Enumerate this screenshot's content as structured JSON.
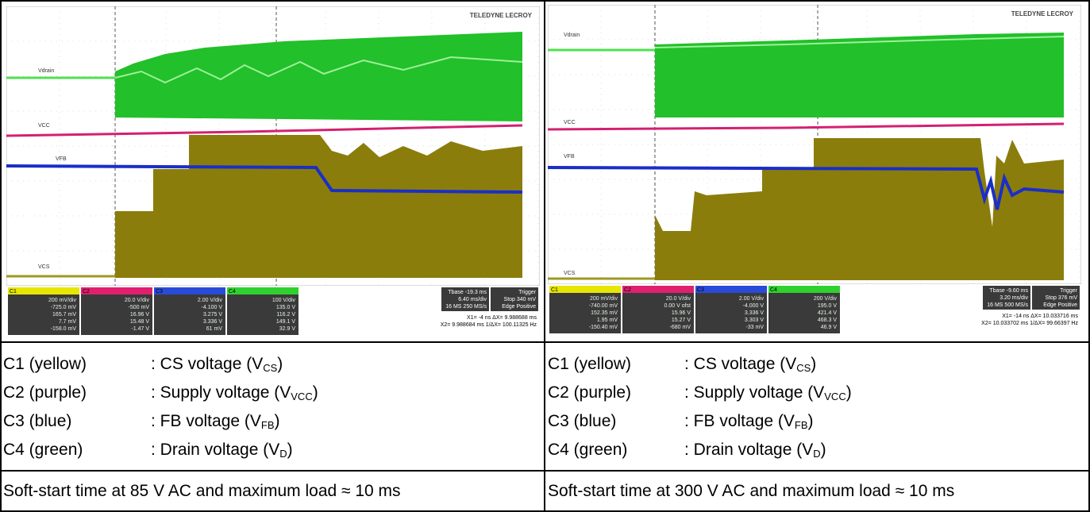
{
  "panels": [
    {
      "logo": "TELEDYNE LECROY",
      "traces": [
        "Vdrain",
        "VCC",
        "VFB",
        "VCS"
      ],
      "channels": [
        {
          "name": "C1",
          "lines": [
            "200 mV/div",
            "-725.0 mV",
            "165.7 mV",
            "7.7 mV",
            "-158.0 mV"
          ]
        },
        {
          "name": "C2",
          "lines": [
            "20.0 V/div",
            "-500 mV",
            "16.96 V",
            "15.48 V",
            "-1.47 V"
          ]
        },
        {
          "name": "C3",
          "lines": [
            "2.00 V/div",
            "-4.100 V",
            "3.275 V",
            "3.336 V",
            "61 mV"
          ]
        },
        {
          "name": "C4",
          "lines": [
            "100 V/div",
            "135.0 V",
            "116.2 V",
            "149.1 V",
            "32.9 V"
          ]
        }
      ],
      "timebase": [
        "Tbase -19.3 ms",
        "6.40 ms/div",
        "16 MS 250 MS/s"
      ],
      "trigger": [
        "Trigger",
        "Stop 340 mV",
        "Edge Positive"
      ],
      "cursors": [
        "X1= -4 ns ΔX= 9.988688 ms",
        "X2= 9.988684 ms 1/ΔX= 100.11325 Hz"
      ],
      "legend": [
        {
          "label": "C1 (yellow)",
          "desc": ": CS voltage (V",
          "sub": "CS",
          "end": ")"
        },
        {
          "label": "C2 (purple)",
          "desc": ": Supply voltage (V",
          "sub": "VCC",
          "end": ")"
        },
        {
          "label": "C3 (blue)",
          "desc": ": FB voltage (V",
          "sub": "FB",
          "end": ")"
        },
        {
          "label": "C4 (green)",
          "desc": ": Drain voltage (V",
          "sub": "D",
          "end": ")"
        }
      ],
      "caption": "Soft-start time at 85 V AC and maximum load ≈ 10 ms"
    },
    {
      "logo": "TELEDYNE LECROY",
      "traces": [
        "Vdrain",
        "VCC",
        "VFB",
        "VCS"
      ],
      "channels": [
        {
          "name": "C1",
          "lines": [
            "200 mV/div",
            "-740.00 mV",
            "152.35 mV",
            "1.95 mV",
            "-150.40 mV"
          ]
        },
        {
          "name": "C2",
          "lines": [
            "20.0 V/div",
            "0.00 V ofst",
            "15.96 V",
            "15.27 V",
            "-680 mV"
          ]
        },
        {
          "name": "C3",
          "lines": [
            "2.00 V/div",
            "-4.000 V",
            "3.336 V",
            "3.303 V",
            "-33 mV"
          ]
        },
        {
          "name": "C4",
          "lines": [
            "200 V/div",
            "195.0 V",
            "421.4 V",
            "468.3 V",
            "46.9 V"
          ]
        }
      ],
      "timebase": [
        "Tbase -9.60 ms",
        "3.20 ms/div",
        "16 MS 500 MS/s"
      ],
      "trigger": [
        "Trigger",
        "Stop 376 mV",
        "Edge Positive"
      ],
      "cursors": [
        "X1= -14 ns ΔX= 10.033716 ms",
        "X2= 10.033702 ms 1/ΔX= 99.66397 Hz"
      ],
      "legend": [
        {
          "label": "C1 (yellow)",
          "desc": ": CS voltage (V",
          "sub": "CS",
          "end": ")"
        },
        {
          "label": "C2 (purple)",
          "desc": ": Supply voltage (V",
          "sub": "VCC",
          "end": ")"
        },
        {
          "label": "C3 (blue)",
          "desc": ": FB voltage (V",
          "sub": "FB",
          "end": ")"
        },
        {
          "label": "C4 (green)",
          "desc": ": Drain voltage (V",
          "sub": "D",
          "end": ")"
        }
      ],
      "caption": "Soft-start time at 300 V AC and maximum load ≈ 10 ms"
    }
  ]
}
